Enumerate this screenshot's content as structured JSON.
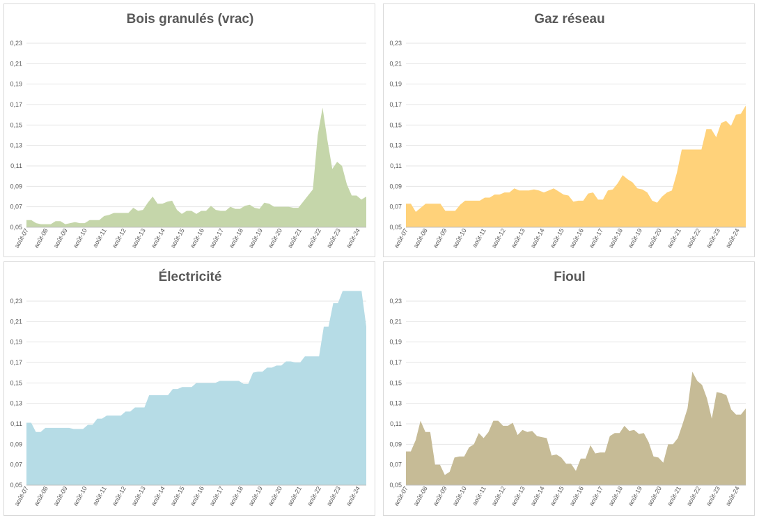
{
  "chart_data": [
    {
      "type": "area",
      "title": "Bois granulés (vrac)",
      "color": "#c5d6aa",
      "ylim": [
        0.05,
        0.23
      ],
      "yticks": [
        "0,05",
        "0,07",
        "0,09",
        "0,11",
        "0,13",
        "0,15",
        "0,17",
        "0,19",
        "0,21",
        "0,23"
      ],
      "xticks": [
        "août-07",
        "août-08",
        "août-09",
        "août-10",
        "août-11",
        "août-12",
        "août-13",
        "août-14",
        "août-15",
        "août-16",
        "août-17",
        "août-18",
        "août-19",
        "août-20",
        "août-21",
        "août-22",
        "août-23",
        "août-24"
      ],
      "x_start": 2007.583,
      "x_end": 2025.0,
      "values": [
        0.057,
        0.057,
        0.054,
        0.053,
        0.053,
        0.053,
        0.056,
        0.056,
        0.053,
        0.054,
        0.055,
        0.054,
        0.054,
        0.057,
        0.057,
        0.057,
        0.061,
        0.062,
        0.064,
        0.064,
        0.064,
        0.064,
        0.069,
        0.066,
        0.067,
        0.074,
        0.08,
        0.073,
        0.073,
        0.075,
        0.076,
        0.067,
        0.063,
        0.066,
        0.066,
        0.063,
        0.066,
        0.066,
        0.071,
        0.067,
        0.066,
        0.066,
        0.07,
        0.068,
        0.068,
        0.071,
        0.072,
        0.069,
        0.068,
        0.074,
        0.073,
        0.07,
        0.07,
        0.07,
        0.07,
        0.069,
        0.069,
        0.075,
        0.081,
        0.087,
        0.14,
        0.167,
        0.135,
        0.107,
        0.114,
        0.11,
        0.092,
        0.081,
        0.081,
        0.077,
        0.08
      ]
    },
    {
      "type": "area",
      "title": "Gaz réseau",
      "color": "#ffd27a",
      "ylim": [
        0.05,
        0.23
      ],
      "yticks": [
        "0,05",
        "0,07",
        "0,09",
        "0,11",
        "0,13",
        "0,15",
        "0,17",
        "0,19",
        "0,21",
        "0,23"
      ],
      "xticks": [
        "août-07",
        "août-08",
        "août-09",
        "août-10",
        "août-11",
        "août-12",
        "août-13",
        "août-14",
        "août-15",
        "août-16",
        "août-17",
        "août-18",
        "août-19",
        "août-20",
        "août-21",
        "août-22",
        "août-23",
        "août-24"
      ],
      "x_start": 2007.583,
      "x_end": 2025.0,
      "values": [
        0.073,
        0.073,
        0.065,
        0.069,
        0.073,
        0.073,
        0.073,
        0.073,
        0.066,
        0.066,
        0.066,
        0.072,
        0.076,
        0.076,
        0.076,
        0.076,
        0.079,
        0.079,
        0.082,
        0.082,
        0.084,
        0.084,
        0.088,
        0.086,
        0.086,
        0.086,
        0.087,
        0.086,
        0.084,
        0.086,
        0.088,
        0.085,
        0.082,
        0.081,
        0.075,
        0.076,
        0.076,
        0.083,
        0.084,
        0.077,
        0.077,
        0.086,
        0.087,
        0.093,
        0.101,
        0.097,
        0.094,
        0.088,
        0.087,
        0.084,
        0.076,
        0.074,
        0.08,
        0.084,
        0.086,
        0.103,
        0.126,
        0.126,
        0.126,
        0.126,
        0.126,
        0.146,
        0.146,
        0.138,
        0.152,
        0.154,
        0.149,
        0.16,
        0.161,
        0.169
      ]
    },
    {
      "type": "area",
      "title": "Électricité",
      "color": "#b6dce6",
      "ylim": [
        0.05,
        0.24
      ],
      "yticks": [
        "0,05",
        "0,07",
        "0,09",
        "0,11",
        "0,13",
        "0,15",
        "0,17",
        "0,19",
        "0,21",
        "0,23"
      ],
      "xticks": [
        "août-07",
        "août-08",
        "août-09",
        "août-10",
        "août-11",
        "août-12",
        "août-13",
        "août-14",
        "août-15",
        "août-16",
        "août-17",
        "août-18",
        "août-19",
        "août-20",
        "août-21",
        "août-22",
        "août-23",
        "août-24"
      ],
      "x_start": 2007.583,
      "x_end": 2025.0,
      "values": [
        0.111,
        0.111,
        0.102,
        0.102,
        0.106,
        0.106,
        0.106,
        0.106,
        0.106,
        0.106,
        0.105,
        0.105,
        0.105,
        0.109,
        0.109,
        0.115,
        0.115,
        0.118,
        0.118,
        0.118,
        0.118,
        0.122,
        0.122,
        0.126,
        0.126,
        0.126,
        0.138,
        0.138,
        0.138,
        0.138,
        0.138,
        0.144,
        0.144,
        0.146,
        0.146,
        0.146,
        0.15,
        0.15,
        0.15,
        0.15,
        0.15,
        0.152,
        0.152,
        0.152,
        0.152,
        0.152,
        0.149,
        0.149,
        0.16,
        0.161,
        0.161,
        0.165,
        0.165,
        0.167,
        0.167,
        0.171,
        0.171,
        0.17,
        0.17,
        0.176,
        0.176,
        0.176,
        0.176,
        0.205,
        0.205,
        0.228,
        0.228,
        0.24,
        0.24,
        0.24,
        0.24,
        0.24,
        0.205
      ]
    },
    {
      "type": "area",
      "title": "Fioul",
      "color": "#c6bb96",
      "ylim": [
        0.05,
        0.23
      ],
      "yticks": [
        "0,05",
        "0,07",
        "0,09",
        "0,11",
        "0,13",
        "0,15",
        "0,17",
        "0,19",
        "0,21",
        "0,23"
      ],
      "xticks": [
        "août-07",
        "août-08",
        "août-09",
        "août-10",
        "août-11",
        "août-12",
        "août-13",
        "août-14",
        "août-15",
        "août-16",
        "août-17",
        "août-18",
        "août-19",
        "août-20",
        "août-21",
        "août-22",
        "août-23",
        "août-24"
      ],
      "x_start": 2007.583,
      "x_end": 2025.0,
      "values": [
        0.083,
        0.083,
        0.094,
        0.113,
        0.102,
        0.102,
        0.07,
        0.07,
        0.06,
        0.063,
        0.077,
        0.078,
        0.078,
        0.087,
        0.09,
        0.101,
        0.096,
        0.102,
        0.113,
        0.113,
        0.108,
        0.108,
        0.111,
        0.099,
        0.104,
        0.102,
        0.103,
        0.098,
        0.097,
        0.096,
        0.079,
        0.08,
        0.077,
        0.071,
        0.071,
        0.064,
        0.076,
        0.076,
        0.089,
        0.081,
        0.082,
        0.082,
        0.098,
        0.101,
        0.101,
        0.108,
        0.103,
        0.104,
        0.1,
        0.101,
        0.092,
        0.078,
        0.077,
        0.072,
        0.09,
        0.09,
        0.096,
        0.11,
        0.125,
        0.161,
        0.152,
        0.148,
        0.135,
        0.115,
        0.141,
        0.14,
        0.138,
        0.124,
        0.119,
        0.119,
        0.125
      ]
    }
  ]
}
